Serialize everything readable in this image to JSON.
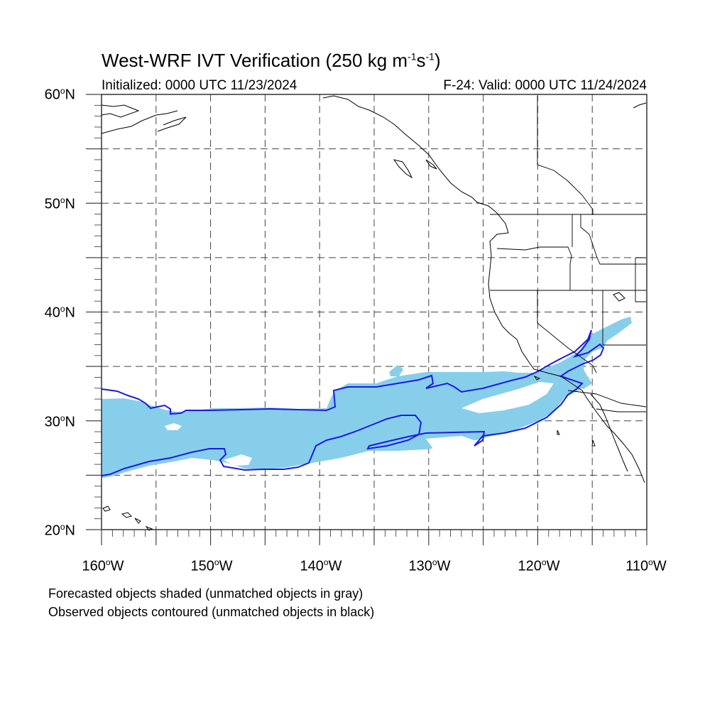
{
  "title": {
    "main": "West-WRF IVT Verification (250 kg m",
    "exp1": "-1",
    "mid": "s",
    "exp2": "-1",
    "end": ")"
  },
  "subtitle_left": "Initialized: 0000 UTC 11/23/2024",
  "subtitle_right": "F-24: Valid: 0000 UTC 11/24/2024",
  "lat_labels": [
    {
      "num": "60",
      "deg": "o",
      "hem": "N"
    },
    {
      "num": "50",
      "deg": "o",
      "hem": "N"
    },
    {
      "num": "40",
      "deg": "o",
      "hem": "N"
    },
    {
      "num": "30",
      "deg": "o",
      "hem": "N"
    },
    {
      "num": "20",
      "deg": "o",
      "hem": "N"
    }
  ],
  "lon_labels": [
    {
      "num": "160",
      "deg": "o",
      "hem": "W"
    },
    {
      "num": "150",
      "deg": "o",
      "hem": "W"
    },
    {
      "num": "140",
      "deg": "o",
      "hem": "W"
    },
    {
      "num": "130",
      "deg": "o",
      "hem": "W"
    },
    {
      "num": "120",
      "deg": "o",
      "hem": "W"
    },
    {
      "num": "110",
      "deg": "o",
      "hem": "W"
    }
  ],
  "notes": [
    "Forecasted objects shaded (unmatched objects in gray)",
    "Observed objects contoured (unmatched objects in black)"
  ],
  "colors": {
    "forecast_fill": "#87ceeb",
    "observed_contour": "#1a1ae6",
    "coastline": "#000000",
    "grid": "#444444"
  },
  "map": {
    "lat_range": [
      20,
      60
    ],
    "lon_range": [
      -160,
      -110
    ],
    "grid_spacing_deg": 5,
    "grid_style": "dashed"
  }
}
